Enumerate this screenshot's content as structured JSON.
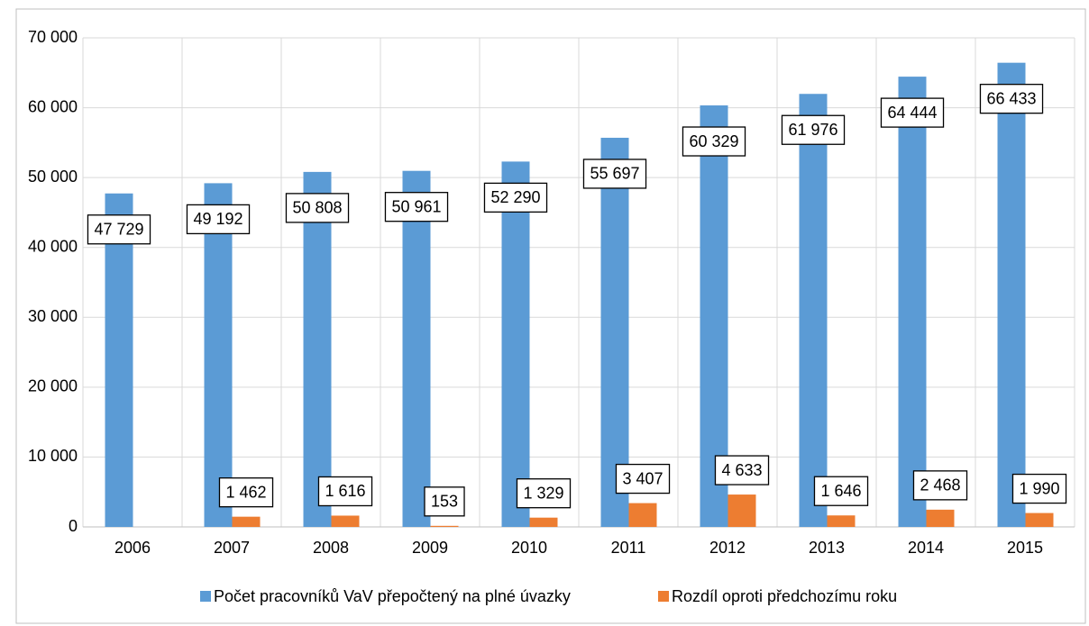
{
  "chart_data": {
    "type": "bar",
    "categories": [
      "2006",
      "2007",
      "2008",
      "2009",
      "2010",
      "2011",
      "2012",
      "2013",
      "2014",
      "2015"
    ],
    "series": [
      {
        "name": "Počet pracovníků VaV přepočtený na plné úvazky",
        "color": "#5b9bd5",
        "values": [
          47729,
          49192,
          50808,
          50961,
          52290,
          55697,
          60329,
          61976,
          64444,
          66433
        ],
        "value_labels": [
          "47 729",
          "49 192",
          "50 808",
          "50 961",
          "52 290",
          "55 697",
          "60 329",
          "61 976",
          "64 444",
          "66 433"
        ]
      },
      {
        "name": "Rozdíl oproti předchozímu roku",
        "color": "#ed7d31",
        "values": [
          null,
          1462,
          1616,
          153,
          1329,
          3407,
          4633,
          1646,
          2468,
          1990
        ],
        "value_labels": [
          null,
          "1 462",
          "1 616",
          "153",
          "1 329",
          "3 407",
          "4 633",
          "1 646",
          "2 468",
          "1 990"
        ]
      }
    ],
    "ylim": [
      0,
      70000
    ],
    "yticks": [
      0,
      {
        "value": 10000,
        "label": "10 000"
      },
      {
        "value": 20000,
        "label": "20 000"
      },
      {
        "value": 30000,
        "label": "30 000"
      },
      {
        "value": 40000,
        "label": "40 000"
      },
      {
        "value": 50000,
        "label": "50 000"
      },
      {
        "value": 60000,
        "label": "60 000"
      },
      {
        "value": 70000,
        "label": "70 000"
      }
    ],
    "grid": true,
    "legend": "bottom"
  }
}
